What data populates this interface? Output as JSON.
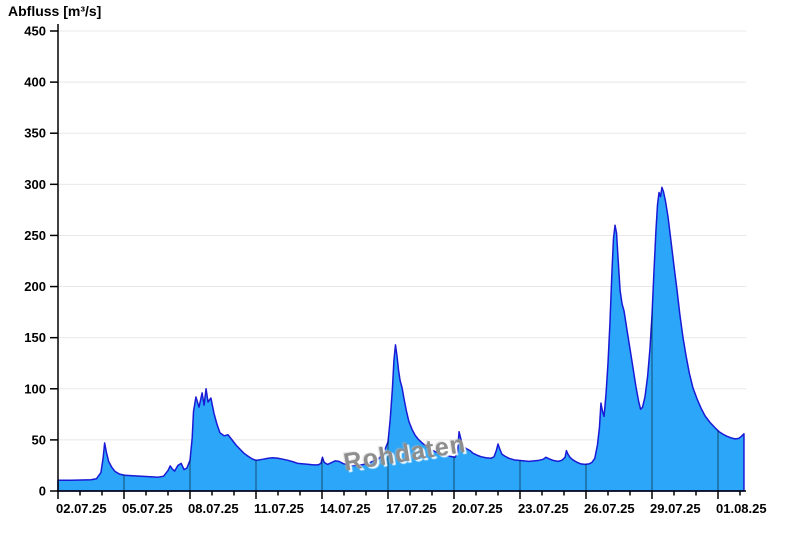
{
  "title": "Abfluss [m³/s]",
  "watermark": "Rohdaten",
  "chart_data": {
    "type": "area",
    "title": "Abfluss [m³/s]",
    "ylabel": "Abfluss [m³/s]",
    "xlabel": "",
    "ylim": [
      0,
      450
    ],
    "ytick_step": 50,
    "yticks": [
      0,
      50,
      100,
      150,
      200,
      250,
      300,
      350,
      400,
      450
    ],
    "xtick_labels": [
      "02.07.25",
      "05.07.25",
      "08.07.25",
      "11.07.25",
      "14.07.25",
      "17.07.25",
      "20.07.25",
      "23.07.25",
      "26.07.25",
      "29.07.25",
      "01.08.25"
    ],
    "xtick_days": [
      0,
      3,
      6,
      9,
      12,
      15,
      18,
      21,
      24,
      27,
      30
    ],
    "minor_tick_every_days": 1,
    "x_start_label": "02.07.25",
    "x_end_day": 31.18,
    "grid": "horizontal",
    "legend": "none",
    "series": [
      {
        "name": "Abfluss",
        "unit": "m³/s",
        "points": [
          [
            0,
            10.5
          ],
          [
            0.6,
            10.5
          ],
          [
            1.1,
            10.8
          ],
          [
            1.5,
            11
          ],
          [
            1.75,
            12
          ],
          [
            1.95,
            18
          ],
          [
            2.05,
            32
          ],
          [
            2.12,
            47
          ],
          [
            2.2,
            38
          ],
          [
            2.3,
            29
          ],
          [
            2.45,
            23
          ],
          [
            2.6,
            19
          ],
          [
            2.8,
            16.5
          ],
          [
            3.0,
            15.5
          ],
          [
            3.3,
            15
          ],
          [
            3.7,
            14.5
          ],
          [
            4.2,
            14
          ],
          [
            4.55,
            13.5
          ],
          [
            4.8,
            14.5
          ],
          [
            5.0,
            20
          ],
          [
            5.1,
            24.5
          ],
          [
            5.2,
            21.5
          ],
          [
            5.3,
            19.5
          ],
          [
            5.45,
            25
          ],
          [
            5.6,
            27
          ],
          [
            5.73,
            21
          ],
          [
            5.86,
            22.5
          ],
          [
            6.0,
            30
          ],
          [
            6.1,
            52
          ],
          [
            6.16,
            78
          ],
          [
            6.27,
            92
          ],
          [
            6.41,
            82
          ],
          [
            6.55,
            96
          ],
          [
            6.64,
            84
          ],
          [
            6.73,
            100
          ],
          [
            6.82,
            87
          ],
          [
            6.95,
            91
          ],
          [
            7.09,
            76
          ],
          [
            7.23,
            65
          ],
          [
            7.36,
            57
          ],
          [
            7.55,
            54
          ],
          [
            7.73,
            55
          ],
          [
            7.91,
            50
          ],
          [
            8.09,
            45
          ],
          [
            8.27,
            41
          ],
          [
            8.45,
            37
          ],
          [
            8.64,
            34
          ],
          [
            8.82,
            31.5
          ],
          [
            9.0,
            30
          ],
          [
            9.3,
            31
          ],
          [
            9.55,
            32
          ],
          [
            9.77,
            32.5
          ],
          [
            10.0,
            32
          ],
          [
            10.25,
            31
          ],
          [
            10.45,
            30
          ],
          [
            10.7,
            28.5
          ],
          [
            10.9,
            27
          ],
          [
            11.15,
            26.5
          ],
          [
            11.4,
            26
          ],
          [
            11.6,
            25.5
          ],
          [
            11.82,
            25.5
          ],
          [
            11.95,
            27
          ],
          [
            12.02,
            33
          ],
          [
            12.1,
            28
          ],
          [
            12.25,
            26
          ],
          [
            12.4,
            27.5
          ],
          [
            12.6,
            29.5
          ],
          [
            12.77,
            29
          ],
          [
            12.95,
            27
          ],
          [
            13.15,
            25.5
          ],
          [
            13.35,
            25
          ],
          [
            13.55,
            25
          ],
          [
            13.77,
            25.5
          ],
          [
            14.0,
            26.5
          ],
          [
            14.2,
            28
          ],
          [
            14.4,
            30
          ],
          [
            14.6,
            32
          ],
          [
            14.72,
            35
          ],
          [
            14.85,
            40
          ],
          [
            15.0,
            48
          ],
          [
            15.1,
            70
          ],
          [
            15.2,
            100
          ],
          [
            15.27,
            128
          ],
          [
            15.34,
            143
          ],
          [
            15.41,
            132
          ],
          [
            15.48,
            118
          ],
          [
            15.55,
            108
          ],
          [
            15.64,
            101
          ],
          [
            15.73,
            90
          ],
          [
            15.84,
            78
          ],
          [
            15.95,
            68
          ],
          [
            16.1,
            60
          ],
          [
            16.22,
            55
          ],
          [
            16.36,
            51
          ],
          [
            16.55,
            47
          ],
          [
            16.73,
            44
          ],
          [
            16.9,
            41
          ],
          [
            17.15,
            38.5
          ],
          [
            17.36,
            36.5
          ],
          [
            17.6,
            35
          ],
          [
            17.8,
            34
          ],
          [
            18.05,
            33
          ],
          [
            18.16,
            38
          ],
          [
            18.23,
            58
          ],
          [
            18.3,
            52
          ],
          [
            18.36,
            46
          ],
          [
            18.45,
            43
          ],
          [
            18.6,
            41
          ],
          [
            18.73,
            39.5
          ],
          [
            18.86,
            37
          ],
          [
            19.05,
            35
          ],
          [
            19.23,
            33.5
          ],
          [
            19.45,
            32.5
          ],
          [
            19.68,
            32
          ],
          [
            19.82,
            33.5
          ],
          [
            19.93,
            40
          ],
          [
            20.0,
            46
          ],
          [
            20.1,
            40
          ],
          [
            20.18,
            36
          ],
          [
            20.32,
            34
          ],
          [
            20.5,
            32
          ],
          [
            20.73,
            30.5
          ],
          [
            20.95,
            30
          ],
          [
            21.18,
            29.5
          ],
          [
            21.4,
            29
          ],
          [
            21.64,
            29.5
          ],
          [
            21.86,
            30
          ],
          [
            22.05,
            31
          ],
          [
            22.18,
            33
          ],
          [
            22.32,
            31.5
          ],
          [
            22.5,
            30
          ],
          [
            22.73,
            29
          ],
          [
            22.9,
            30
          ],
          [
            23.05,
            33
          ],
          [
            23.11,
            39.5
          ],
          [
            23.18,
            36
          ],
          [
            23.27,
            33
          ],
          [
            23.4,
            30.5
          ],
          [
            23.6,
            28
          ],
          [
            23.77,
            26.5
          ],
          [
            23.95,
            26
          ],
          [
            24.14,
            26.5
          ],
          [
            24.27,
            28
          ],
          [
            24.4,
            32
          ],
          [
            24.52,
            45
          ],
          [
            24.61,
            62
          ],
          [
            24.68,
            86
          ],
          [
            24.75,
            78
          ],
          [
            24.82,
            73
          ],
          [
            24.91,
            95
          ],
          [
            25.0,
            125
          ],
          [
            25.09,
            165
          ],
          [
            25.18,
            215
          ],
          [
            25.25,
            247
          ],
          [
            25.32,
            260
          ],
          [
            25.39,
            252
          ],
          [
            25.45,
            230
          ],
          [
            25.55,
            196
          ],
          [
            25.64,
            183
          ],
          [
            25.73,
            176
          ],
          [
            25.86,
            158
          ],
          [
            26.0,
            139
          ],
          [
            26.14,
            120
          ],
          [
            26.27,
            102
          ],
          [
            26.39,
            88
          ],
          [
            26.48,
            80
          ],
          [
            26.57,
            82
          ],
          [
            26.68,
            92
          ],
          [
            26.8,
            112
          ],
          [
            26.91,
            140
          ],
          [
            27.0,
            172
          ],
          [
            27.09,
            215
          ],
          [
            27.18,
            255
          ],
          [
            27.25,
            280
          ],
          [
            27.32,
            292
          ],
          [
            27.39,
            288
          ],
          [
            27.45,
            297
          ],
          [
            27.52,
            293
          ],
          [
            27.61,
            284
          ],
          [
            27.73,
            268
          ],
          [
            27.86,
            245
          ],
          [
            28.0,
            220
          ],
          [
            28.14,
            196
          ],
          [
            28.27,
            172
          ],
          [
            28.41,
            150
          ],
          [
            28.55,
            132
          ],
          [
            28.7,
            115
          ],
          [
            28.86,
            101
          ],
          [
            29.05,
            90
          ],
          [
            29.23,
            81
          ],
          [
            29.41,
            73.5
          ],
          [
            29.64,
            67
          ],
          [
            29.86,
            62
          ],
          [
            30.05,
            58
          ],
          [
            30.23,
            55.5
          ],
          [
            30.41,
            53.5
          ],
          [
            30.59,
            52
          ],
          [
            30.77,
            51
          ],
          [
            30.95,
            51.5
          ],
          [
            31.09,
            54
          ],
          [
            31.18,
            56
          ]
        ]
      }
    ],
    "colors": {
      "fill": "#2BA6F8",
      "stroke": "#1A1AD6",
      "grid": "#E8E8E8",
      "axis": "#000000",
      "date_line": "rgba(0,0,0,0.45)",
      "watermark": "#8E8E8E",
      "background": "#FFFFFF"
    }
  }
}
